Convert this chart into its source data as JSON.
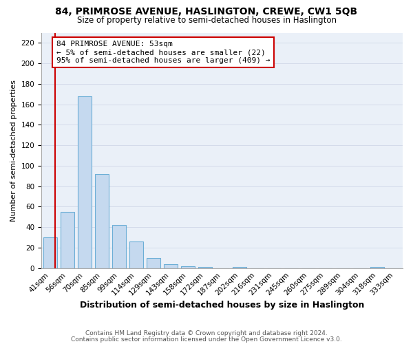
{
  "title": "84, PRIMROSE AVENUE, HASLINGTON, CREWE, CW1 5QB",
  "subtitle": "Size of property relative to semi-detached houses in Haslington",
  "xlabel": "Distribution of semi-detached houses by size in Haslington",
  "ylabel": "Number of semi-detached properties",
  "categories": [
    "41sqm",
    "56sqm",
    "70sqm",
    "85sqm",
    "99sqm",
    "114sqm",
    "129sqm",
    "143sqm",
    "158sqm",
    "172sqm",
    "187sqm",
    "202sqm",
    "216sqm",
    "231sqm",
    "245sqm",
    "260sqm",
    "275sqm",
    "289sqm",
    "304sqm",
    "318sqm",
    "333sqm"
  ],
  "values": [
    30,
    55,
    168,
    92,
    42,
    26,
    10,
    4,
    2,
    1,
    0,
    1,
    0,
    0,
    0,
    0,
    0,
    0,
    0,
    1,
    0
  ],
  "bar_color": "#c5d9ef",
  "bar_edge_color": "#6baed6",
  "annotation_box_text": "84 PRIMROSE AVENUE: 53sqm\n← 5% of semi-detached houses are smaller (22)\n95% of semi-detached houses are larger (409) →",
  "annotation_box_color": "#ffffff",
  "annotation_box_edge_color": "#cc0000",
  "vline_color": "#cc0000",
  "vline_x": 0.28,
  "ylim": [
    0,
    230
  ],
  "yticks": [
    0,
    20,
    40,
    60,
    80,
    100,
    120,
    140,
    160,
    180,
    200,
    220
  ],
  "footer_line1": "Contains HM Land Registry data © Crown copyright and database right 2024.",
  "footer_line2": "Contains public sector information licensed under the Open Government Licence v3.0.",
  "title_fontsize": 10,
  "subtitle_fontsize": 8.5,
  "xlabel_fontsize": 9,
  "ylabel_fontsize": 8,
  "tick_fontsize": 7.5,
  "annotation_fontsize": 8,
  "footer_fontsize": 6.5,
  "bg_color": "#eaf0f8"
}
